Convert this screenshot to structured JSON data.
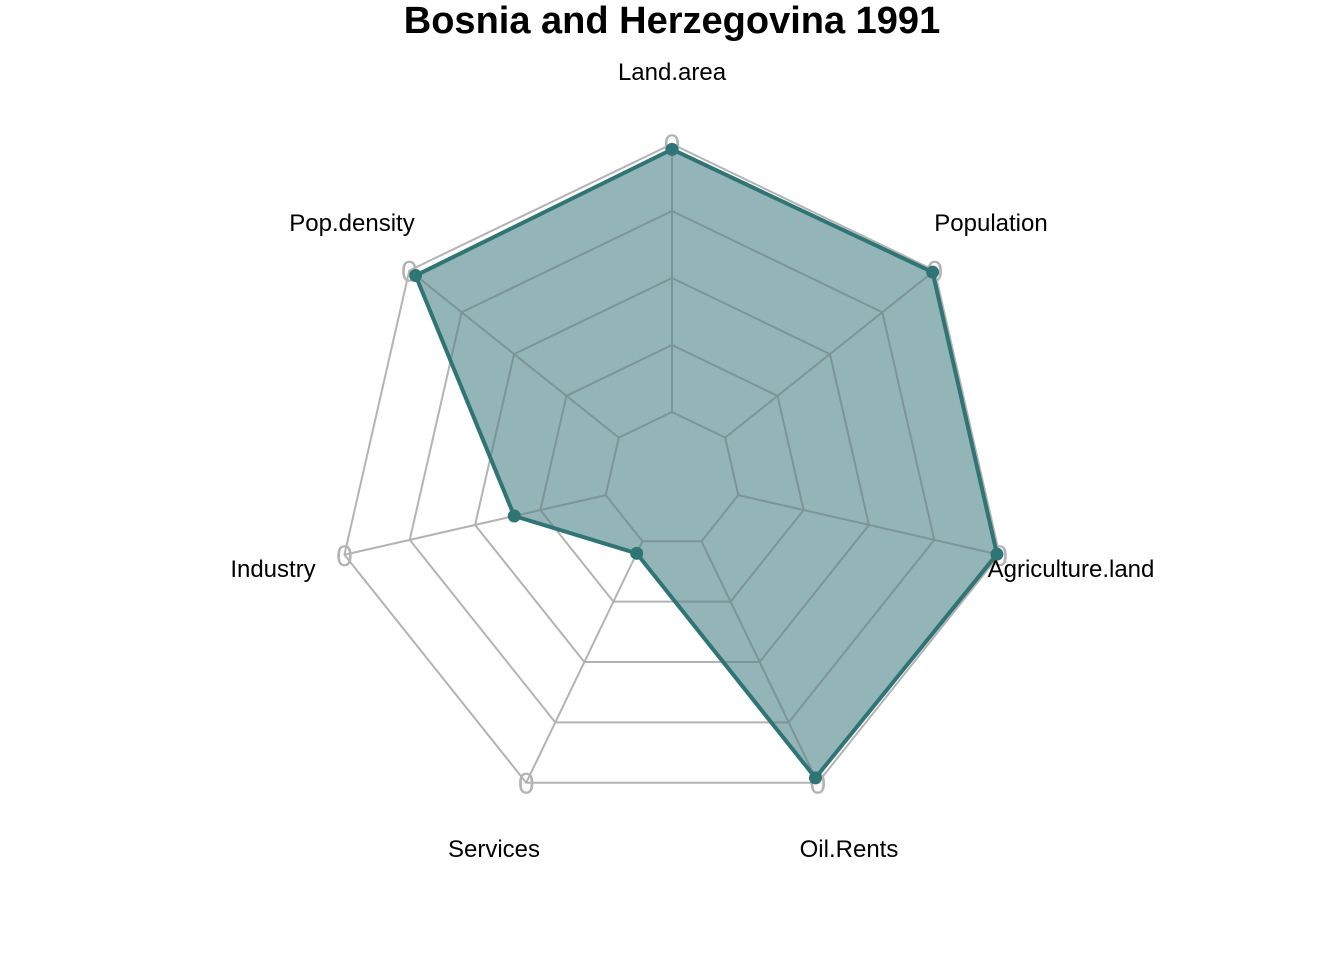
{
  "chart_data": {
    "type": "radar",
    "title": "Bosnia and Herzegovina 1991",
    "axes": [
      "Land.area",
      "Population",
      "Agriculture.land",
      "Oil.Rents",
      "Services",
      "Industry",
      "Pop.density"
    ],
    "axis_max_marker": "0",
    "grid_levels": 5,
    "range": [
      0,
      1
    ],
    "series": [
      {
        "values": [
          0.98,
          0.99,
          0.99,
          0.98,
          0.05,
          0.35,
          0.97
        ],
        "color": "#2f7575",
        "fill": "#94b5b7"
      }
    ]
  }
}
